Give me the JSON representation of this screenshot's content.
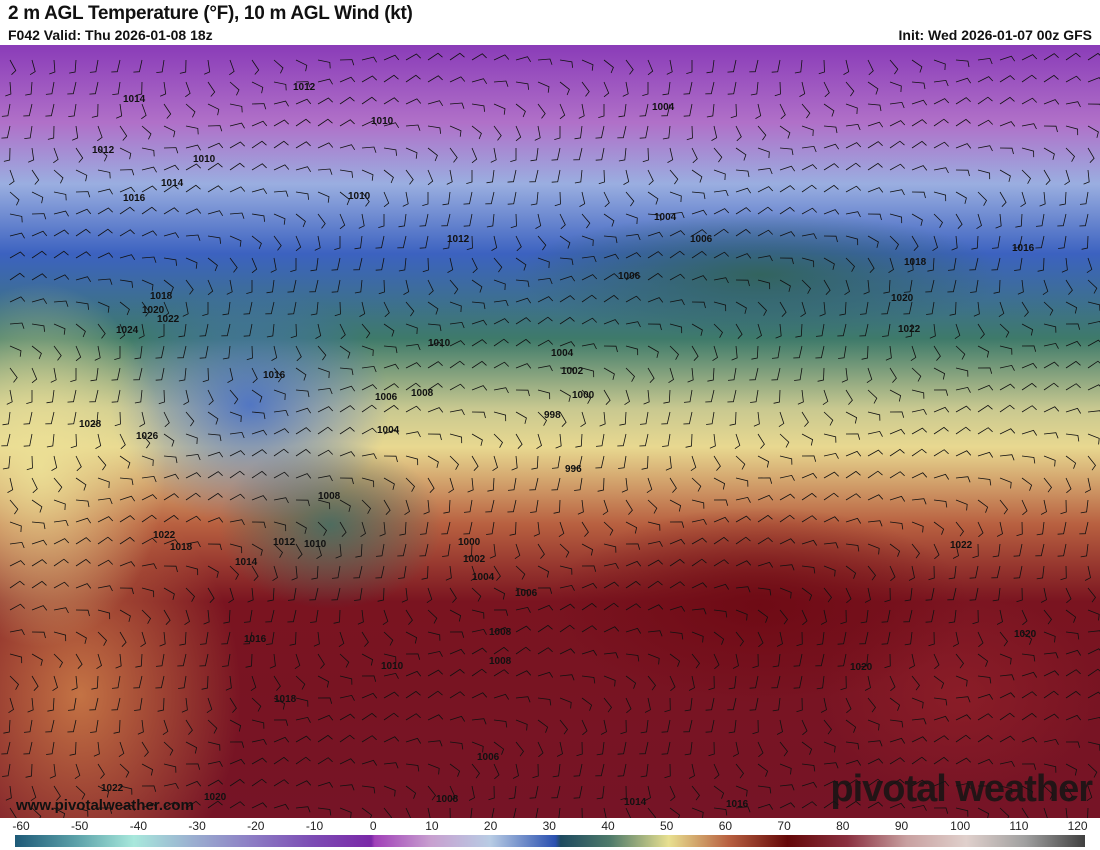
{
  "header": {
    "title": "2 m AGL Temperature (°F), 10 m AGL Wind (kt)",
    "valid": "F042 Valid: Thu 2026-01-08 18z",
    "init": "Init: Wed 2026-01-07 00z GFS"
  },
  "map": {
    "pressure_labels": [
      "1014",
      "1012",
      "1010",
      "1012",
      "1010",
      "1014",
      "1016",
      "1010",
      "1012",
      "1004",
      "1004",
      "1006",
      "1006",
      "1016",
      "1018",
      "1020",
      "1022",
      "1018",
      "1020",
      "1022",
      "1024",
      "1010",
      "1004",
      "1002",
      "1016",
      "1008",
      "1006",
      "1000",
      "998",
      "1028",
      "1026",
      "1004",
      "996",
      "1008",
      "1022",
      "1018",
      "1012",
      "1010",
      "1014",
      "1000",
      "1002",
      "1004",
      "1006",
      "1022",
      "1008",
      "1020",
      "1016",
      "1008",
      "1010",
      "1020",
      "1018",
      "1006",
      "1022",
      "1020",
      "1008",
      "1014",
      "1016"
    ]
  },
  "footer": {
    "website": "www.pivotalweather.com",
    "logo": "pivotal weather"
  },
  "colorbar": {
    "ticks": [
      "-60",
      "-50",
      "-40",
      "-30",
      "-20",
      "-10",
      "0",
      "10",
      "20",
      "30",
      "40",
      "50",
      "60",
      "70",
      "80",
      "90",
      "100",
      "110",
      "120"
    ],
    "colors": {
      "-60": "#1e5a78",
      "-40": "#a8e8dc",
      "0": "#7a28a8",
      "30": "#2a50b0",
      "50": "#e8e090",
      "70": "#640808",
      "100": "#e0d0cc",
      "120": "#404040"
    }
  }
}
